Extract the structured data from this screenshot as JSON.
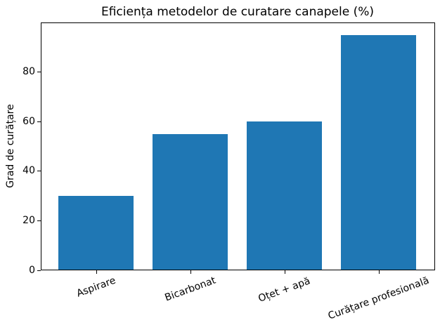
{
  "chart_data": {
    "type": "bar",
    "title": "Eficiența metodelor de curatare canapele (%)",
    "xlabel": "",
    "ylabel": "Grad de curățare",
    "categories": [
      "Aspirare",
      "Bicarbonat",
      "Oțet + apă",
      "Curățare profesională"
    ],
    "values": [
      30,
      55,
      60,
      95
    ],
    "ylim": [
      0,
      100
    ],
    "yticks": [
      0,
      20,
      40,
      60,
      80
    ],
    "bar_color": "#1f77b4",
    "spine_color": "#000000",
    "text_color": "#000000",
    "background_color": "#ffffff",
    "grid": false,
    "legend_position": "none",
    "x_tick_rotation_deg": 20,
    "bar_relative_width": 0.8
  }
}
